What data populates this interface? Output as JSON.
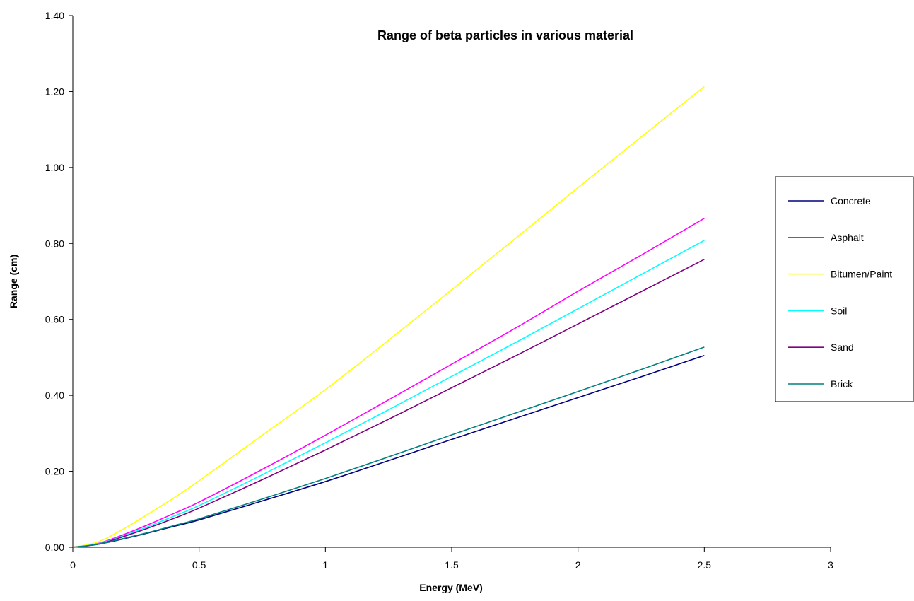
{
  "chart_data": {
    "type": "line",
    "title": "Range of beta particles in various material",
    "xlabel": "Energy (MeV)",
    "ylabel": "Range (cm)",
    "xlim": [
      0,
      3
    ],
    "ylim": [
      0,
      1.4
    ],
    "x_ticks": [
      "0",
      "0.5",
      "1",
      "1.5",
      "2",
      "2.5",
      "3"
    ],
    "y_ticks": [
      "0.00",
      "0.20",
      "0.40",
      "0.60",
      "0.80",
      "1.00",
      "1.20",
      "1.40"
    ],
    "grid": false,
    "legend_position": "right",
    "x": [
      0,
      0.1,
      0.2,
      0.3,
      0.4,
      0.5,
      0.75,
      1.0,
      1.25,
      1.5,
      1.75,
      2.0,
      2.25,
      2.5
    ],
    "series": [
      {
        "name": "Concrete",
        "color": "#000080",
        "values": [
          0,
          0.008,
          0.022,
          0.038,
          0.055,
          0.072,
          0.122,
          0.173,
          0.228,
          0.284,
          0.339,
          0.394,
          0.449,
          0.505
        ]
      },
      {
        "name": "Asphalt",
        "color": "#ff00ff",
        "values": [
          0,
          0.01,
          0.033,
          0.06,
          0.089,
          0.119,
          0.205,
          0.295,
          0.388,
          0.482,
          0.576,
          0.674,
          0.769,
          0.866
        ]
      },
      {
        "name": "Bitumen/Paint",
        "color": "#ffff00",
        "values": [
          0,
          0.014,
          0.048,
          0.088,
          0.13,
          0.175,
          0.295,
          0.415,
          0.545,
          0.678,
          0.812,
          0.947,
          1.08,
          1.213
        ]
      },
      {
        "name": "Soil",
        "color": "#00ffff",
        "values": [
          0,
          0.009,
          0.03,
          0.055,
          0.082,
          0.11,
          0.191,
          0.275,
          0.362,
          0.45,
          0.538,
          0.628,
          0.718,
          0.808
        ]
      },
      {
        "name": "Sand",
        "color": "#800080",
        "values": [
          0,
          0.008,
          0.028,
          0.051,
          0.076,
          0.103,
          0.178,
          0.256,
          0.337,
          0.42,
          0.503,
          0.588,
          0.673,
          0.758
        ]
      },
      {
        "name": "Brick",
        "color": "#008080",
        "values": [
          0,
          0.008,
          0.023,
          0.039,
          0.057,
          0.075,
          0.127,
          0.181,
          0.238,
          0.296,
          0.353,
          0.41,
          0.468,
          0.527
        ]
      }
    ]
  }
}
